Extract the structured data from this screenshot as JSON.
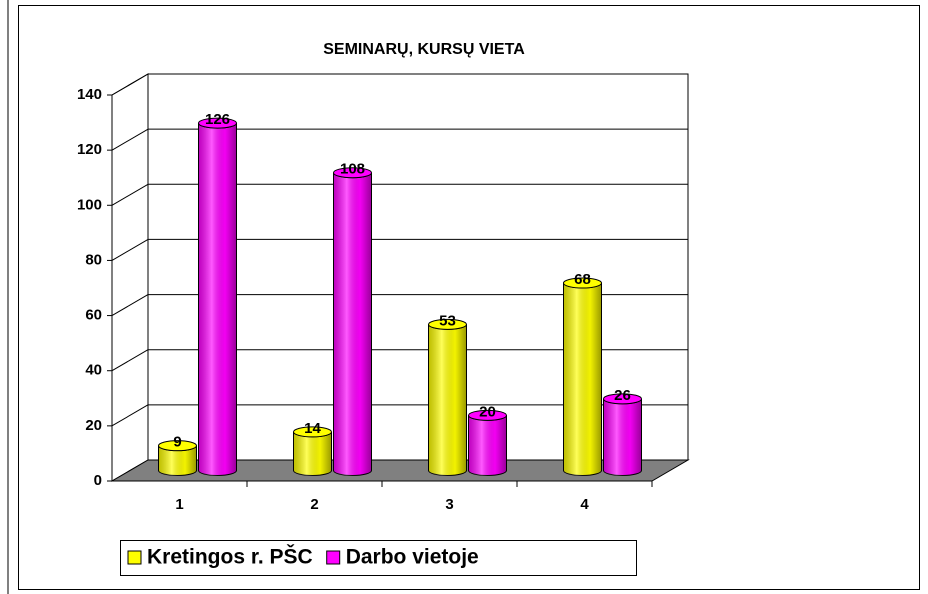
{
  "chart_data": {
    "type": "bar3d",
    "title": "SEMINARŲ, KURSŲ  VIETA",
    "annotations": [
      "."
    ],
    "categories": [
      "1",
      "2",
      "3",
      "4"
    ],
    "series": [
      {
        "name": "Kretingos r. PŠC",
        "color": "#ffff00",
        "values": [
          9,
          14,
          53,
          68
        ]
      },
      {
        "name": "Darbo vietoje",
        "color": "#ff00ff",
        "values": [
          126,
          108,
          20,
          26
        ]
      }
    ],
    "ylim": [
      0,
      140
    ],
    "yticks": [
      0,
      20,
      40,
      60,
      80,
      100,
      120,
      140
    ],
    "grid": true
  }
}
